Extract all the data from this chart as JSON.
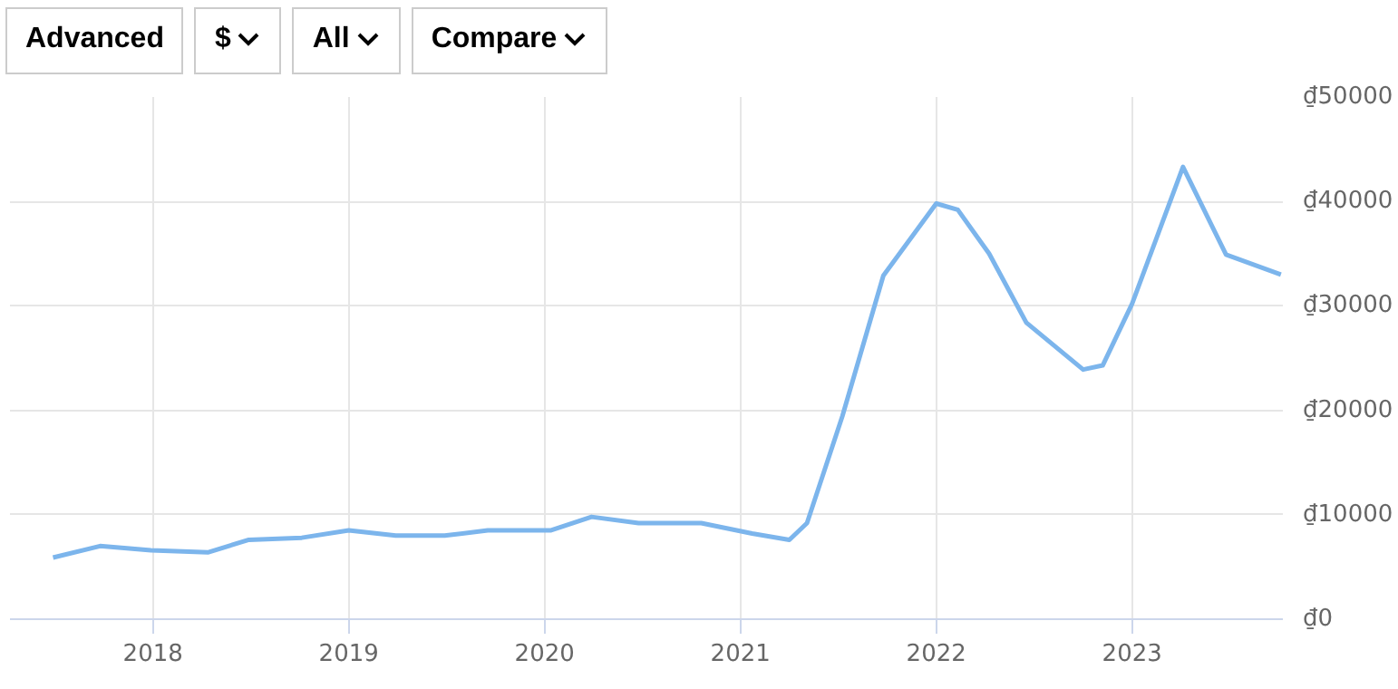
{
  "chart_data": {
    "type": "line",
    "annotations": [
      "Advanced",
      "$",
      "All",
      "Compare"
    ],
    "x": [
      2017.49,
      2017.73,
      2017.99,
      2018.28,
      2018.49,
      2018.76,
      2019.0,
      2019.24,
      2019.49,
      2019.71,
      2020.03,
      2020.24,
      2020.48,
      2020.8,
      2021.06,
      2021.25,
      2021.34,
      2021.52,
      2021.73,
      2022.0,
      2022.11,
      2022.27,
      2022.46,
      2022.75,
      2022.85,
      2023.0,
      2023.26,
      2023.48,
      2023.76
    ],
    "series": [
      {
        "color": "#7cb5ec",
        "values": [
          5900,
          7000,
          6600,
          6400,
          7600,
          7800,
          8500,
          8000,
          8000,
          8500,
          8500,
          9800,
          9200,
          9200,
          8200,
          7600,
          9200,
          19400,
          32900,
          39800,
          39200,
          35000,
          28400,
          23900,
          24300,
          30200,
          43300,
          34900,
          33000
        ]
      }
    ],
    "xlim": [
      2017.27,
      2023.77
    ],
    "xticks": [
      2018,
      2019,
      2020,
      2021,
      2022,
      2023
    ],
    "ylim": [
      0,
      50000
    ],
    "yticks": [
      {
        "value": 0,
        "label": "₫0"
      },
      {
        "value": 10000,
        "label": "₫10000"
      },
      {
        "value": 20000,
        "label": "₫20000"
      },
      {
        "value": 30000,
        "label": "₫30000"
      },
      {
        "value": 40000,
        "label": "₫40000"
      },
      {
        "value": 50000,
        "label": "₫50000"
      }
    ],
    "grid": true,
    "marker": "none",
    "line_style": "solid"
  }
}
